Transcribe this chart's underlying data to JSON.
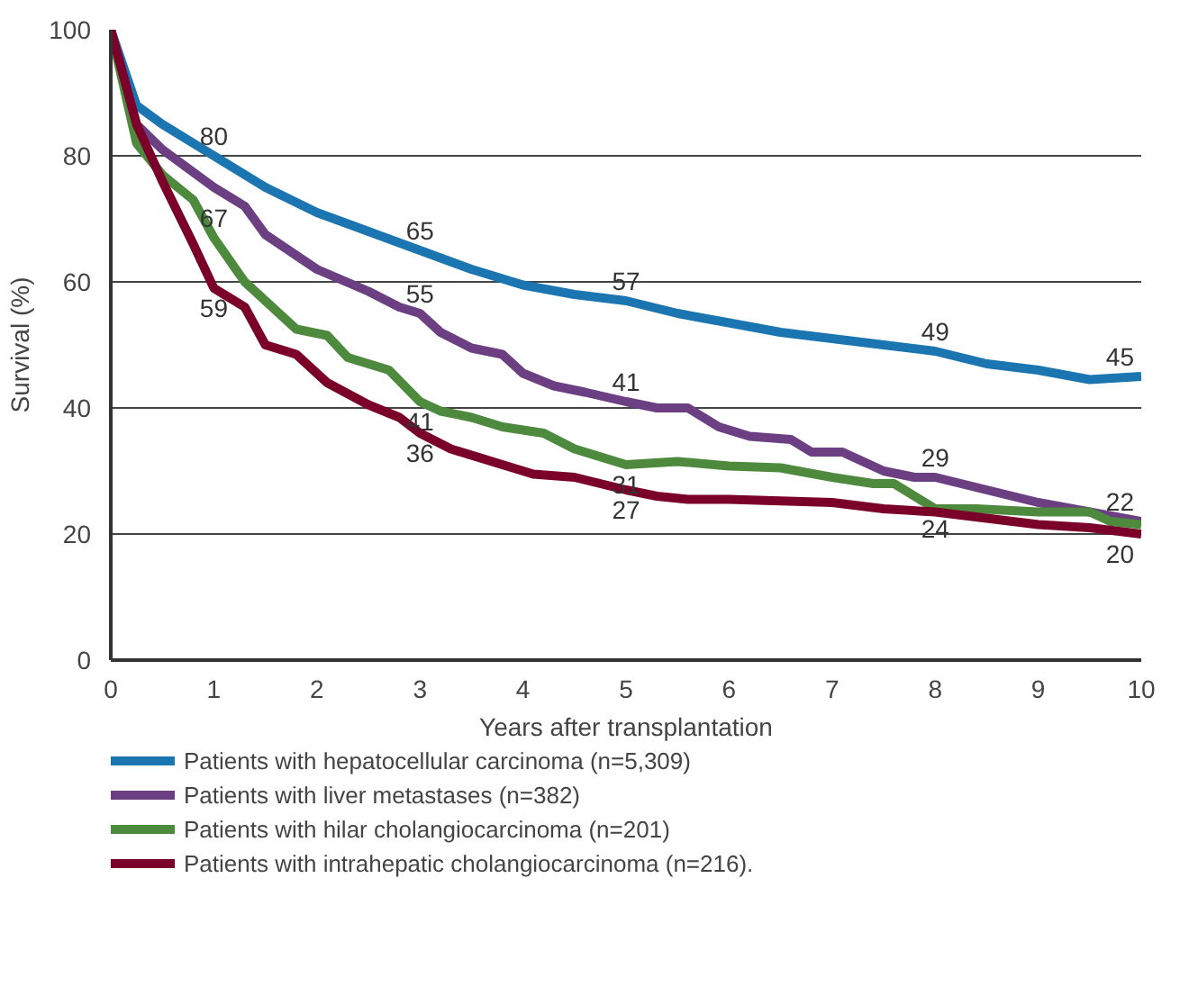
{
  "chart_data": {
    "type": "line",
    "xlabel": "Years after transplantation",
    "ylabel": "Survival (%)",
    "xlim": [
      0,
      10
    ],
    "ylim": [
      0,
      100
    ],
    "xticks": [
      0,
      1,
      2,
      3,
      4,
      5,
      6,
      7,
      8,
      9,
      10
    ],
    "yticks": [
      0,
      20,
      40,
      60,
      80,
      100
    ],
    "grid": "y",
    "legend": "bottom",
    "marker": "none",
    "line_style": "solid",
    "series": [
      {
        "name": "Patients with hepatocellular carcinoma (n=5,309)",
        "color": "#1a75b0",
        "x": [
          0,
          0.25,
          0.5,
          1,
          1.5,
          2,
          2.5,
          3,
          3.5,
          4,
          4.5,
          5,
          5.5,
          6,
          6.5,
          7,
          7.5,
          8,
          8.5,
          9,
          9.5,
          10
        ],
        "values": [
          100,
          88,
          85,
          80,
          75,
          71,
          68,
          65,
          62,
          59.5,
          58,
          57,
          55,
          53.5,
          52,
          51,
          50,
          49,
          47,
          46,
          44.5,
          45
        ]
      },
      {
        "name": "Patients with liver metastases (n=382)",
        "color": "#6b3f82",
        "x": [
          0,
          0.25,
          0.5,
          1,
          1.3,
          1.5,
          2,
          2.5,
          2.8,
          3,
          3.2,
          3.5,
          3.8,
          4,
          4.3,
          4.6,
          5,
          5.3,
          5.6,
          5.9,
          6.2,
          6.6,
          6.8,
          7.1,
          7.5,
          7.8,
          8,
          8.5,
          9,
          9.5,
          10
        ],
        "values": [
          100,
          85,
          81,
          75,
          72,
          67.5,
          62,
          58.5,
          56,
          55,
          52,
          49.5,
          48.5,
          45.5,
          43.5,
          42.5,
          41,
          40,
          40,
          37,
          35.5,
          35,
          33,
          33,
          30,
          29,
          29,
          27,
          25,
          23.5,
          22
        ]
      },
      {
        "name": "Patients with hilar cholangiocarcinoma (n=201)",
        "color": "#4e8a3e",
        "x": [
          0,
          0.25,
          0.5,
          0.8,
          1,
          1.3,
          1.5,
          1.8,
          2.1,
          2.3,
          2.7,
          3,
          3.2,
          3.5,
          3.8,
          4.2,
          4.5,
          5,
          5.5,
          6,
          6.5,
          7,
          7.4,
          7.6,
          8,
          8.4,
          9,
          9.5,
          9.7,
          10
        ],
        "values": [
          100,
          82,
          77,
          73,
          67,
          60,
          57,
          52.5,
          51.5,
          48,
          46,
          41,
          39.5,
          38.5,
          37,
          36,
          33.5,
          31,
          31.5,
          30.8,
          30.5,
          29,
          28,
          28,
          24,
          24,
          23.5,
          23.5,
          22,
          21.5
        ]
      },
      {
        "name": "Patients with intrahepatic cholangiocarcinoma (n=216).",
        "color": "#7a0029",
        "x": [
          0,
          0.25,
          0.5,
          0.8,
          1,
          1.3,
          1.5,
          1.8,
          2.1,
          2.5,
          2.8,
          3,
          3.3,
          3.8,
          4.1,
          4.5,
          5,
          5.3,
          5.6,
          6,
          7,
          7.5,
          8,
          8.5,
          9,
          9.5,
          10
        ],
        "values": [
          100,
          85,
          76,
          66,
          59,
          56,
          50,
          48.5,
          44,
          40.5,
          38.5,
          36,
          33.5,
          31,
          29.5,
          29,
          27,
          26,
          25.5,
          25.5,
          25,
          24,
          23.5,
          22.5,
          21.5,
          21,
          20
        ]
      }
    ],
    "annotations": [
      {
        "text": "80",
        "x": 1,
        "y": 80
      },
      {
        "text": "67",
        "x": 1,
        "y": 67
      },
      {
        "text": "59",
        "x": 1,
        "y": 59
      },
      {
        "text": "65",
        "x": 3,
        "y": 65
      },
      {
        "text": "55",
        "x": 3,
        "y": 55
      },
      {
        "text": "41",
        "x": 3,
        "y": 41
      },
      {
        "text": "36",
        "x": 3,
        "y": 36
      },
      {
        "text": "57",
        "x": 5,
        "y": 57
      },
      {
        "text": "41",
        "x": 5,
        "y": 41
      },
      {
        "text": "31",
        "x": 5,
        "y": 31
      },
      {
        "text": "27",
        "x": 5,
        "y": 27
      },
      {
        "text": "49",
        "x": 8,
        "y": 49
      },
      {
        "text": "29",
        "x": 8,
        "y": 29
      },
      {
        "text": "24",
        "x": 8,
        "y": 24
      },
      {
        "text": "45",
        "x": 10,
        "y": 45
      },
      {
        "text": "22",
        "x": 10,
        "y": 22
      },
      {
        "text": "20",
        "x": 10,
        "y": 20
      }
    ]
  }
}
